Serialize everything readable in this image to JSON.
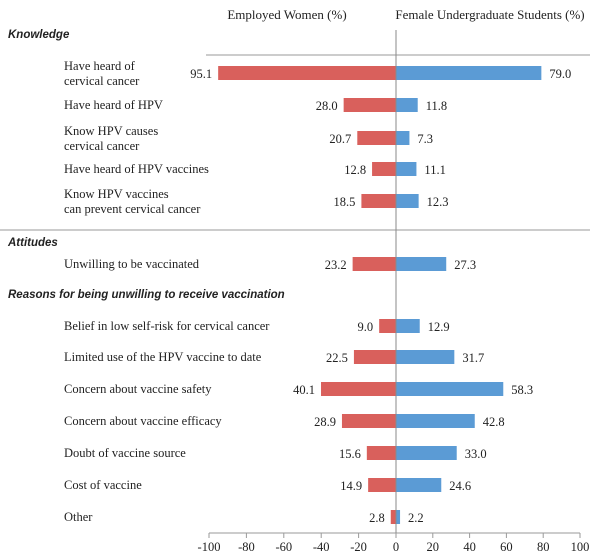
{
  "chart_data": {
    "type": "bar",
    "orientation": "horizontal-diverging",
    "series": [
      {
        "name": "Employed Women (%)",
        "color": "#d9605c",
        "side": "negative"
      },
      {
        "name": "Female Undergraduate Students (%)",
        "color": "#5b9bd5",
        "side": "positive"
      }
    ],
    "xlim": [
      -100,
      100
    ],
    "xticks": [
      "-100",
      "-80",
      "-60",
      "-40",
      "-20",
      "0",
      "20",
      "40",
      "60",
      "80",
      "100"
    ],
    "grid": false,
    "sections": [
      {
        "title": "Knowledge",
        "items": [
          {
            "label": [
              "Have heard of",
              "cervical cancer"
            ],
            "women": 95.1,
            "students": 79.0,
            "women_label": "95.1",
            "students_label": "79.0"
          },
          {
            "label": [
              "Have heard of HPV"
            ],
            "women": 28.0,
            "students": 11.8,
            "women_label": "28.0",
            "students_label": "11.8"
          },
          {
            "label": [
              "Know HPV causes",
              "cervical cancer"
            ],
            "women": 20.7,
            "students": 7.3,
            "women_label": "20.7",
            "students_label": "7.3"
          },
          {
            "label": [
              "Have heard of HPV vaccines"
            ],
            "women": 12.8,
            "students": 11.1,
            "women_label": "12.8",
            "students_label": "11.1"
          },
          {
            "label": [
              "Know HPV vaccines",
              "can prevent cervical cancer"
            ],
            "women": 18.5,
            "students": 12.3,
            "women_label": "18.5",
            "students_label": "12.3"
          }
        ]
      },
      {
        "title": "Attitudes",
        "items": [
          {
            "label": [
              "Unwilling to be vaccinated"
            ],
            "women": 23.2,
            "students": 27.3,
            "women_label": "23.2",
            "students_label": "27.3"
          }
        ]
      },
      {
        "title": "Reasons for being unwilling to receive vaccination",
        "items": [
          {
            "label": [
              "Belief in low self-risk for cervical cancer"
            ],
            "women": 9.0,
            "students": 12.9,
            "women_label": "9.0",
            "students_label": "12.9"
          },
          {
            "label": [
              "Limited use of the HPV vaccine to date"
            ],
            "women": 22.5,
            "students": 31.7,
            "women_label": "22.5",
            "students_label": "31.7"
          },
          {
            "label": [
              "Concern about vaccine safety"
            ],
            "women": 40.1,
            "students": 58.3,
            "women_label": "40.1",
            "students_label": "58.3"
          },
          {
            "label": [
              "Concern about vaccine efficacy"
            ],
            "women": 28.9,
            "students": 42.8,
            "women_label": "28.9",
            "students_label": "42.8"
          },
          {
            "label": [
              "Doubt of vaccine source"
            ],
            "women": 15.6,
            "students": 33.0,
            "women_label": "15.6",
            "students_label": "33.0"
          },
          {
            "label": [
              "Cost of vaccine"
            ],
            "women": 14.9,
            "students": 24.6,
            "women_label": "14.9",
            "students_label": "24.6"
          },
          {
            "label": [
              "Other"
            ],
            "women": 2.8,
            "students": 2.2,
            "women_label": "2.8",
            "students_label": "2.2"
          }
        ]
      }
    ]
  }
}
